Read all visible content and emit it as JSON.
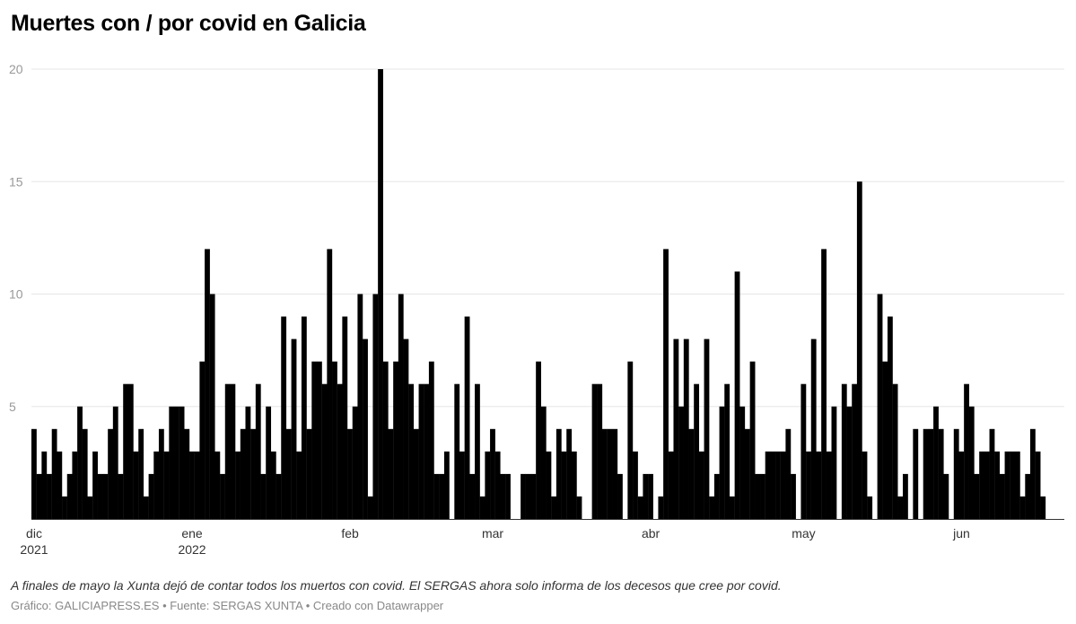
{
  "title": "Muertes con / por covid en Galicia",
  "note": "A finales de mayo la Xunta dejó de contar todos los muertos con covid. El SERGAS ahora solo informa de los decesos que cree por covid.",
  "credit": {
    "chart_label": "Gráfico: GALICIAPRESS.ES",
    "source_label": "Fuente: SERGAS XUNTA",
    "made_with": "Creado con Datawrapper",
    "separator": " • "
  },
  "colors": {
    "bar": "#000000",
    "grid": "#e5e5e5",
    "axis_text": "#999999",
    "xaxis_text": "#333333"
  },
  "chart_data": {
    "type": "bar",
    "title": "Muertes con / por covid en Galicia",
    "x_start": "2021-12-01",
    "x_end": "2022-06-17",
    "x_interval": "daily",
    "ylim": [
      0,
      20
    ],
    "y_ticks": [
      5,
      10,
      15,
      20
    ],
    "grid": "horizontal",
    "x_ticks": [
      {
        "date": "2021-12-01",
        "label": "dic",
        "sublabel": "2021"
      },
      {
        "date": "2022-01-01",
        "label": "ene",
        "sublabel": "2022"
      },
      {
        "date": "2022-02-01",
        "label": "feb",
        "sublabel": ""
      },
      {
        "date": "2022-03-01",
        "label": "mar",
        "sublabel": ""
      },
      {
        "date": "2022-04-01",
        "label": "abr",
        "sublabel": ""
      },
      {
        "date": "2022-05-01",
        "label": "may",
        "sublabel": ""
      },
      {
        "date": "2022-06-01",
        "label": "jun",
        "sublabel": ""
      }
    ],
    "values": [
      4,
      2,
      3,
      2,
      4,
      3,
      1,
      2,
      3,
      5,
      4,
      1,
      3,
      2,
      2,
      4,
      5,
      2,
      6,
      6,
      3,
      4,
      1,
      2,
      3,
      4,
      3,
      5,
      5,
      5,
      4,
      3,
      3,
      7,
      12,
      10,
      3,
      2,
      6,
      6,
      3,
      4,
      5,
      4,
      6,
      2,
      5,
      3,
      2,
      9,
      4,
      8,
      3,
      9,
      4,
      7,
      7,
      6,
      12,
      7,
      6,
      9,
      4,
      5,
      10,
      8,
      1,
      10,
      20,
      7,
      4,
      7,
      10,
      8,
      6,
      4,
      6,
      6,
      7,
      2,
      2,
      3,
      0,
      6,
      3,
      9,
      2,
      6,
      1,
      3,
      4,
      3,
      2,
      2,
      0,
      0,
      2,
      2,
      2,
      7,
      5,
      3,
      1,
      4,
      3,
      4,
      3,
      1,
      0,
      0,
      6,
      6,
      4,
      4,
      4,
      2,
      0,
      7,
      3,
      1,
      2,
      2,
      0,
      1,
      12,
      3,
      8,
      5,
      8,
      4,
      6,
      3,
      8,
      1,
      2,
      5,
      6,
      1,
      11,
      5,
      4,
      7,
      2,
      2,
      3,
      3,
      3,
      3,
      4,
      2,
      0,
      6,
      3,
      8,
      3,
      12,
      3,
      5,
      0,
      6,
      5,
      6,
      15,
      3,
      1,
      0,
      10,
      7,
      9,
      6,
      1,
      2,
      0,
      4,
      0,
      4,
      4,
      5,
      4,
      2,
      0,
      4,
      3,
      6,
      5,
      2,
      3,
      3,
      4,
      3,
      2,
      3,
      3,
      3,
      1,
      2,
      4,
      3,
      1
    ]
  }
}
